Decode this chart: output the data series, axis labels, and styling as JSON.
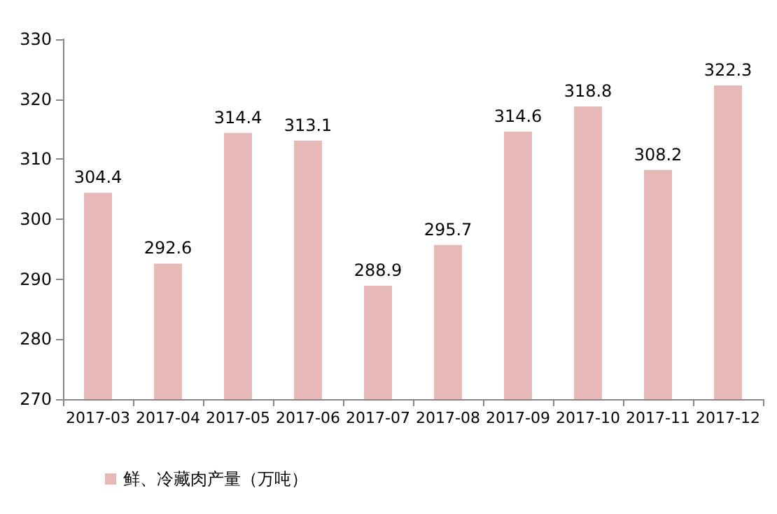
{
  "chart_data": {
    "type": "bar",
    "categories": [
      "2017-03",
      "2017-04",
      "2017-05",
      "2017-06",
      "2017-07",
      "2017-08",
      "2017-09",
      "2017-10",
      "2017-11",
      "2017-12"
    ],
    "series": [
      {
        "name": "鲜、冷藏肉产量（万吨）",
        "color": "#e6b9b8",
        "values": [
          304.4,
          292.6,
          314.4,
          313.1,
          288.9,
          295.7,
          314.6,
          318.8,
          308.2,
          322.3
        ]
      }
    ],
    "ylim": [
      270,
      330
    ],
    "yticks": [
      270,
      280,
      290,
      300,
      310,
      320,
      330
    ],
    "data_labels": true,
    "grid": false,
    "legend": "bottom left"
  }
}
